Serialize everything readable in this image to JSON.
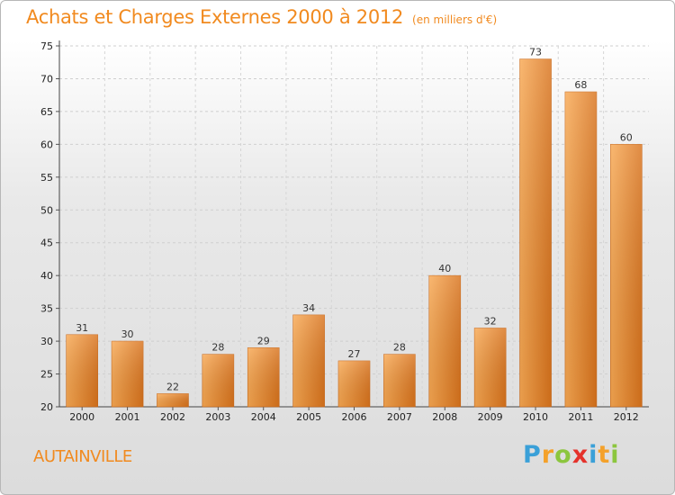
{
  "header": {
    "title": "Achats et Charges Externes 2000 à 2012",
    "unit": "(en milliers d'€)"
  },
  "footer": {
    "commune": "AUTAINVILLE",
    "logo": {
      "letters": [
        "P",
        "r",
        "o",
        "x",
        "i",
        "t",
        "i"
      ],
      "colors": [
        "#3aa0d8",
        "#f4a12a",
        "#8cc63e",
        "#e5322b",
        "#3aa0d8",
        "#f4a12a",
        "#8cc63e"
      ]
    }
  },
  "colors": {
    "bar_light": "#f8a852",
    "bar_dark": "#d9731c",
    "title": "#f18a1f"
  },
  "chart_data": {
    "type": "bar",
    "title": "Achats et Charges Externes 2000 à 2012",
    "categories": [
      "2000",
      "2001",
      "2002",
      "2003",
      "2004",
      "2005",
      "2006",
      "2007",
      "2008",
      "2009",
      "2010",
      "2011",
      "2012"
    ],
    "values": [
      31,
      30,
      22,
      28,
      29,
      34,
      27,
      28,
      40,
      32,
      73,
      68,
      60
    ],
    "xlabel": "",
    "ylabel": "",
    "ylim": [
      20,
      75
    ],
    "yticks": [
      20,
      25,
      30,
      35,
      40,
      45,
      50,
      55,
      60,
      65,
      70,
      75
    ],
    "grid": true
  }
}
